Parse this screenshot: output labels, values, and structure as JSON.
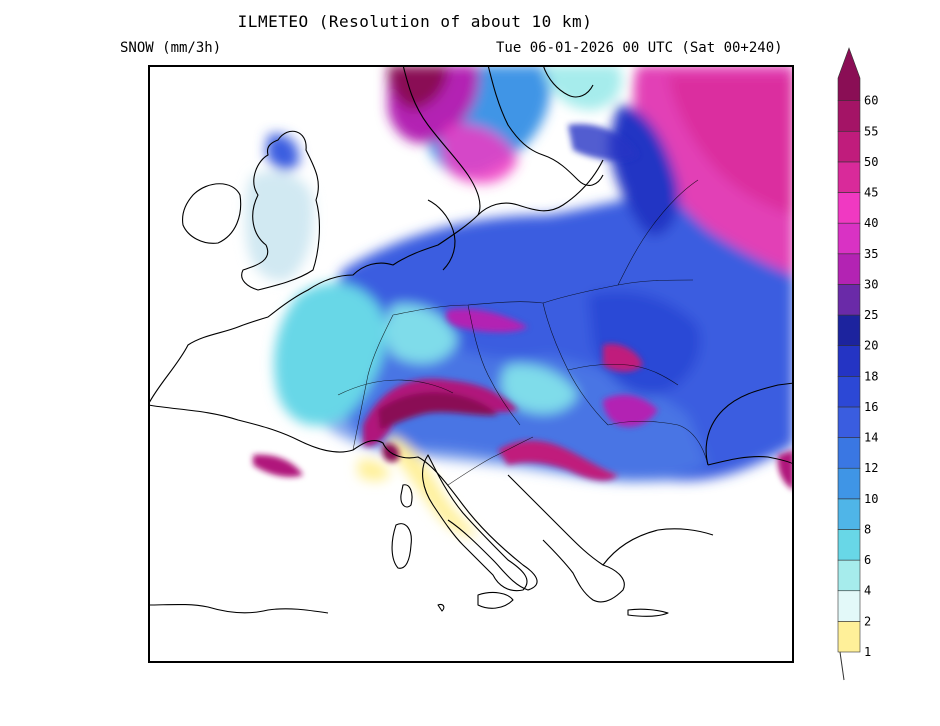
{
  "header": {
    "title": "ILMETEO (Resolution of about 10 km)",
    "variable": "SNOW (mm/3h)",
    "valid_time": "Tue 06-01-2026 00 UTC (Sat 00+240)"
  },
  "legend": {
    "levels": [
      {
        "value": "1",
        "color": "#fff099"
      },
      {
        "value": "2",
        "color": "#e3f9f9"
      },
      {
        "value": "4",
        "color": "#a6ecec"
      },
      {
        "value": "6",
        "color": "#68d7e7"
      },
      {
        "value": "8",
        "color": "#4fb5e8"
      },
      {
        "value": "10",
        "color": "#3f95e6"
      },
      {
        "value": "12",
        "color": "#3a77e3"
      },
      {
        "value": "14",
        "color": "#3a5de0"
      },
      {
        "value": "16",
        "color": "#2c48d6"
      },
      {
        "value": "18",
        "color": "#2434c4"
      },
      {
        "value": "20",
        "color": "#1c239e"
      },
      {
        "value": "25",
        "color": "#6a2aa8"
      },
      {
        "value": "30",
        "color": "#b323b3"
      },
      {
        "value": "35",
        "color": "#d932c4"
      },
      {
        "value": "40",
        "color": "#f039c2"
      },
      {
        "value": "45",
        "color": "#d92a9a"
      },
      {
        "value": "50",
        "color": "#c01c7c"
      },
      {
        "value": "55",
        "color": "#a41466"
      },
      {
        "value": "60",
        "color": "#8a0e55"
      }
    ]
  }
}
